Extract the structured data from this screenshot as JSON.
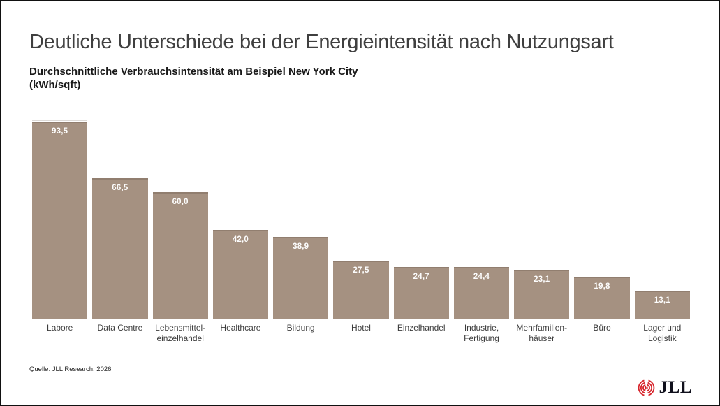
{
  "header": {
    "title": "Deutliche Unterschiede bei der Energieintensität nach Nutzungsart",
    "subtitle": "Durchschnittliche Verbrauchsintensität am Beispiel New York City",
    "unit": "(kWh/sqft)"
  },
  "chart_data": {
    "type": "bar",
    "title": "Deutliche Unterschiede bei der Energieintensität nach Nutzungsart",
    "subtitle": "Durchschnittliche Verbrauchsintensität am Beispiel New York City (kWh/sqft)",
    "categories": [
      "Labore",
      "Data Centre",
      "Lebensmittel-einzelhandel",
      "Healthcare",
      "Bildung",
      "Hotel",
      "Einzelhandel",
      "Industrie, Fertigung",
      "Mehrfamilien-häuser",
      "Büro",
      "Lager und Logistik"
    ],
    "category_lines": [
      [
        "Labore"
      ],
      [
        "Data Centre"
      ],
      [
        "Lebensmittel-",
        "einzelhandel"
      ],
      [
        "Healthcare"
      ],
      [
        "Bildung"
      ],
      [
        "Hotel"
      ],
      [
        "Einzelhandel"
      ],
      [
        "Industrie,",
        "Fertigung"
      ],
      [
        "Mehrfamilien-",
        "häuser"
      ],
      [
        "Büro"
      ],
      [
        "Lager und",
        "Logistik"
      ]
    ],
    "values": [
      93.5,
      66.5,
      60.0,
      42.0,
      38.9,
      27.5,
      24.7,
      24.4,
      23.1,
      19.8,
      13.1
    ],
    "value_labels": [
      "93,5",
      "66,5",
      "60,0",
      "42,0",
      "38,9",
      "27,5",
      "24,7",
      "24,4",
      "23,1",
      "19,8",
      "13,1"
    ],
    "xlabel": "",
    "ylabel": "kWh/sqft",
    "ylim": [
      0,
      94.5
    ],
    "grid": false,
    "legend": false,
    "bar_color": "#a59181",
    "value_label_color": "#fdfdfd"
  },
  "footer": {
    "source": "Quelle: JLL Research, 2026",
    "logo_text": "JLL",
    "logo_red": "#d7242b"
  }
}
